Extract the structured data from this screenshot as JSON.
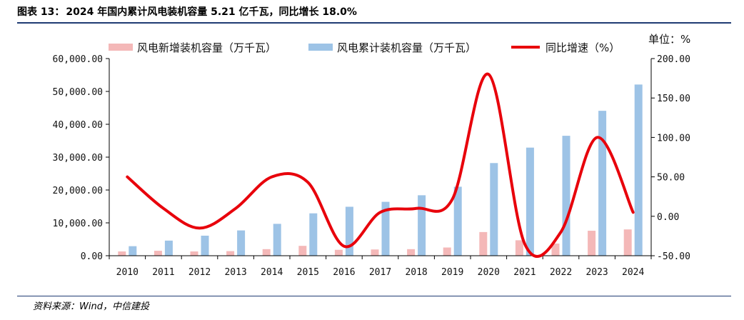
{
  "header": {
    "figure_label": "图表 13：",
    "title": "2024 年国内累计风电装机容量 5.21 亿千瓦，同比增长 18.0%"
  },
  "footer": {
    "source": "资料来源：Wind，中信建投"
  },
  "colors": {
    "new_bar": "#f4b8b8",
    "cum_bar": "#9dc3e6",
    "yoy_line": "#e8000b",
    "rule": "#1f3b73"
  },
  "chart_data": {
    "type": "bar",
    "categories": [
      "2010",
      "2011",
      "2012",
      "2013",
      "2014",
      "2015",
      "2016",
      "2017",
      "2018",
      "2019",
      "2020",
      "2021",
      "2022",
      "2023",
      "2024"
    ],
    "series": [
      {
        "name": "风电新增装机容量（万千瓦）",
        "type": "bar",
        "axis": "left",
        "values": [
          1300,
          1500,
          1300,
          1400,
          2000,
          3000,
          1800,
          1900,
          2000,
          2500,
          7200,
          4700,
          3700,
          7600,
          8000
        ]
      },
      {
        "name": "风电累计装机容量（万千瓦）",
        "type": "bar",
        "axis": "left",
        "values": [
          2900,
          4600,
          6100,
          7700,
          9700,
          12900,
          14900,
          16400,
          18400,
          21000,
          28200,
          32900,
          36500,
          44100,
          52100
        ]
      },
      {
        "name": "同比增速（%）",
        "type": "line",
        "axis": "right",
        "values": [
          50,
          10,
          -15,
          10,
          50,
          43,
          -38,
          5,
          10,
          22,
          180,
          -35,
          -20,
          100,
          5
        ]
      }
    ],
    "y_left": {
      "min": 0,
      "max": 60000,
      "step": 10000,
      "ticks": [
        "0.00",
        "10,000.00",
        "20,000.00",
        "30,000.00",
        "40,000.00",
        "50,000.00",
        "60,000.00"
      ]
    },
    "y_right": {
      "min": -50,
      "max": 200,
      "step": 50,
      "ticks": [
        "-50.00",
        "0.00",
        "50.00",
        "100.00",
        "150.00",
        "200.00"
      ]
    },
    "unit_label": "单位：%",
    "legend_position": "top",
    "grid": false
  }
}
